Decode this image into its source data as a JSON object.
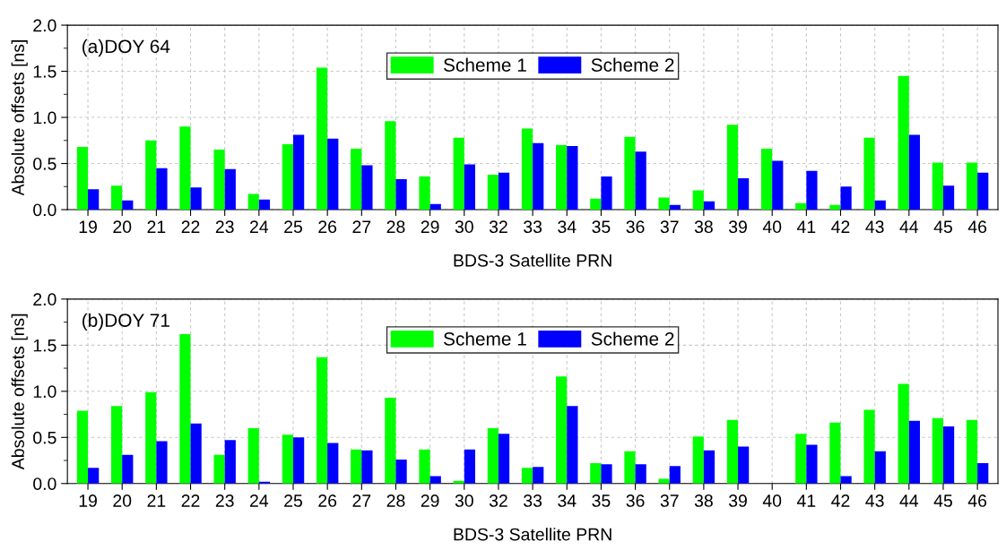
{
  "chart_data": [
    {
      "type": "bar",
      "title": "(a)DOY 64",
      "xlabel": "BDS-3 Satellite PRN",
      "ylabel": "Absolute offsets [ns]",
      "categories": [
        "19",
        "20",
        "21",
        "22",
        "23",
        "24",
        "25",
        "26",
        "27",
        "28",
        "29",
        "30",
        "32",
        "33",
        "34",
        "35",
        "36",
        "37",
        "38",
        "39",
        "40",
        "41",
        "42",
        "43",
        "44",
        "45",
        "46"
      ],
      "series": [
        {
          "name": "Scheme 1",
          "color": "#00ff00",
          "values": [
            0.68,
            0.26,
            0.75,
            0.9,
            0.65,
            0.17,
            0.71,
            1.54,
            0.66,
            0.96,
            0.36,
            0.78,
            0.38,
            0.88,
            0.7,
            0.12,
            0.79,
            0.13,
            0.21,
            0.92,
            0.66,
            0.07,
            0.05,
            0.78,
            1.45,
            0.51,
            0.51
          ]
        },
        {
          "name": "Scheme 2",
          "color": "#0000ff",
          "values": [
            0.22,
            0.1,
            0.45,
            0.24,
            0.44,
            0.11,
            0.81,
            0.77,
            0.48,
            0.33,
            0.06,
            0.49,
            0.4,
            0.72,
            0.69,
            0.36,
            0.63,
            0.05,
            0.09,
            0.34,
            0.53,
            0.42,
            0.25,
            0.1,
            0.81,
            0.26,
            0.4
          ]
        }
      ],
      "ylim": [
        0,
        2
      ],
      "yticks": [
        {
          "value": 0,
          "label": "0.0"
        },
        {
          "value": 0.5,
          "label": "0.5"
        },
        {
          "value": 1,
          "label": "1.0"
        },
        {
          "value": 1.5,
          "label": "1.5"
        },
        {
          "value": 2,
          "label": "2.0"
        }
      ],
      "grid": true,
      "legend": "top"
    },
    {
      "type": "bar",
      "title": "(b)DOY 71",
      "xlabel": "BDS-3 Satellite PRN",
      "ylabel": "Absolute offsets [ns]",
      "categories": [
        "19",
        "20",
        "21",
        "22",
        "23",
        "24",
        "25",
        "26",
        "27",
        "28",
        "29",
        "30",
        "32",
        "33",
        "34",
        "35",
        "36",
        "37",
        "38",
        "39",
        "40",
        "41",
        "42",
        "43",
        "44",
        "45",
        "46"
      ],
      "series": [
        {
          "name": "Scheme 1",
          "color": "#00ff00",
          "values": [
            0.79,
            0.84,
            0.99,
            1.62,
            0.31,
            0.6,
            0.53,
            1.37,
            0.37,
            0.93,
            0.37,
            0.03,
            0.6,
            0.17,
            1.16,
            0.22,
            0.35,
            0.05,
            0.51,
            0.69,
            null,
            0.54,
            0.66,
            0.8,
            1.08,
            0.71,
            0.69
          ]
        },
        {
          "name": "Scheme 2",
          "color": "#0000ff",
          "values": [
            0.17,
            0.31,
            0.46,
            0.65,
            0.47,
            0.02,
            0.5,
            0.44,
            0.36,
            0.26,
            0.08,
            0.37,
            0.54,
            0.18,
            0.84,
            0.21,
            0.21,
            0.19,
            0.36,
            0.4,
            null,
            0.42,
            0.08,
            0.35,
            0.68,
            0.62,
            0.22
          ]
        }
      ],
      "ylim": [
        0,
        2
      ],
      "yticks": [
        {
          "value": 0,
          "label": "0.0"
        },
        {
          "value": 0.5,
          "label": "0.5"
        },
        {
          "value": 1,
          "label": "1.0"
        },
        {
          "value": 1.5,
          "label": "1.5"
        },
        {
          "value": 2,
          "label": "2.0"
        }
      ],
      "grid": true,
      "legend": "top"
    }
  ]
}
